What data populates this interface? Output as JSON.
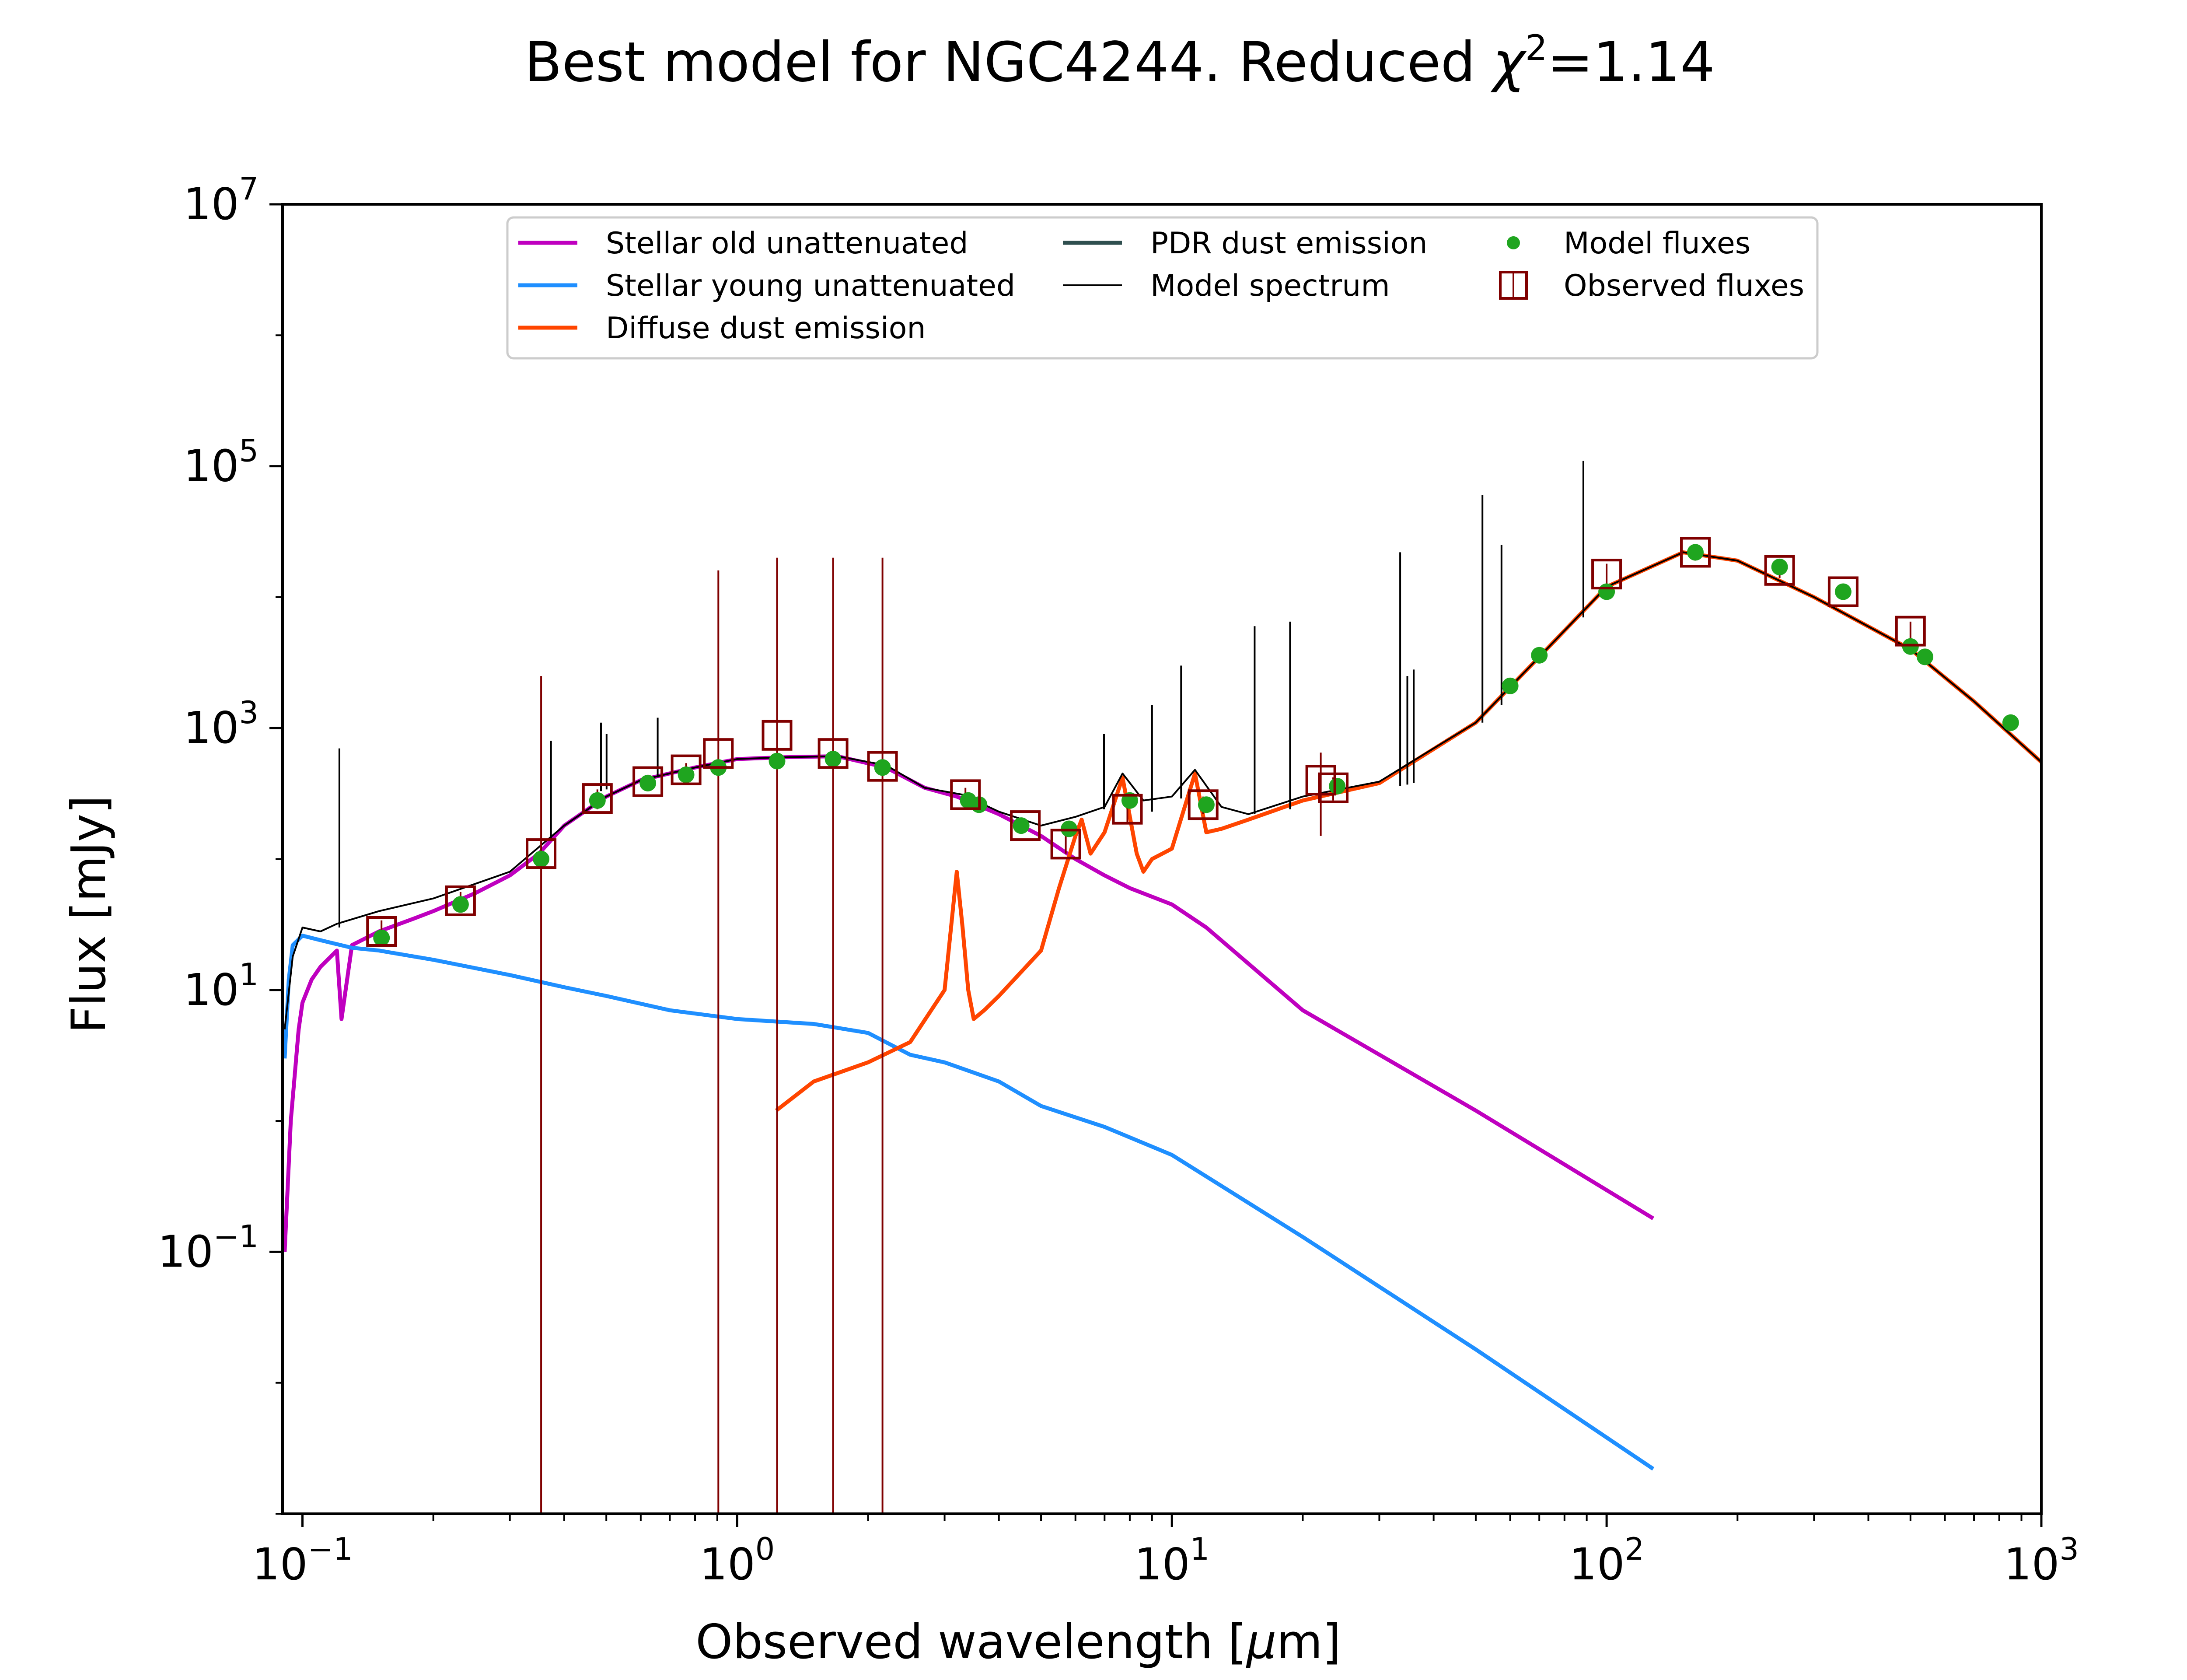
{
  "chart_data": {
    "type": "line",
    "title_main": "Best model for NGC4244. Reduced ",
    "title_chi": "χ",
    "title_exp": "2",
    "title_value": "=1.14",
    "xlabel_main": "Observed wavelength [",
    "xlabel_mu": "μ",
    "xlabel_unit": "m]",
    "ylabel": "Flux [mJy]",
    "xscale": "log",
    "yscale": "log",
    "xlim": [
      0.09,
      1000
    ],
    "ylim": [
      0.001,
      10000000
    ],
    "grid": false,
    "legend_placement": "top-center",
    "x_ticks": [
      {
        "base": "10",
        "exp": "−1",
        "value": 0.1
      },
      {
        "base": "10",
        "exp": "0",
        "value": 1
      },
      {
        "base": "10",
        "exp": "1",
        "value": 10
      },
      {
        "base": "10",
        "exp": "2",
        "value": 100
      },
      {
        "base": "10",
        "exp": "3",
        "value": 1000
      }
    ],
    "y_ticks": [
      {
        "base": "10",
        "exp": "−1",
        "value": 0.1
      },
      {
        "base": "10",
        "exp": "1",
        "value": 10
      },
      {
        "base": "10",
        "exp": "3",
        "value": 1000
      },
      {
        "base": "10",
        "exp": "5",
        "value": 100000
      },
      {
        "base": "10",
        "exp": "7",
        "value": 10000000
      }
    ],
    "legend": [
      {
        "label": "Stellar old unattenuated",
        "kind": "line",
        "color": "#bf00bf"
      },
      {
        "label": "Stellar young unattenuated",
        "kind": "line",
        "color": "#1f8fff"
      },
      {
        "label": "Diffuse dust emission",
        "kind": "line",
        "color": "#ff4500"
      },
      {
        "label": "PDR dust emission",
        "kind": "line",
        "color": "#2f4f4f"
      },
      {
        "label": "Model spectrum",
        "kind": "thinline",
        "color": "#000000"
      },
      {
        "label": "Model fluxes",
        "kind": "dot",
        "color": "#1fa51f"
      },
      {
        "label": "Observed fluxes",
        "kind": "square",
        "color": "#800000"
      }
    ],
    "series": [
      {
        "name": "Stellar old unattenuated",
        "color": "#bf00bf",
        "x": [
          0.091,
          0.094,
          0.098,
          0.1,
          0.105,
          0.11,
          0.12,
          0.123,
          0.13,
          0.15,
          0.18,
          0.2,
          0.25,
          0.3,
          0.35,
          0.4,
          0.5,
          0.6,
          0.8,
          1.0,
          1.3,
          1.7,
          2.2,
          2.7,
          3.2,
          4.0,
          5.0,
          6.0,
          7.0,
          8.0,
          10.0,
          12.0,
          20.0,
          50.0,
          128.0
        ],
        "y": [
          0.1,
          1.0,
          5.0,
          8.0,
          12.0,
          15.0,
          20.0,
          6.0,
          22.0,
          28.0,
          35.0,
          40.0,
          55.0,
          75.0,
          110.0,
          180.0,
          300.0,
          400.0,
          500.0,
          580.0,
          600.0,
          610.0,
          500.0,
          350.0,
          300.0,
          220.0,
          150.0,
          100.0,
          75.0,
          60.0,
          45.0,
          30.0,
          7.0,
          1.2,
          0.18
        ]
      },
      {
        "name": "Stellar young unattenuated",
        "color": "#1f8fff",
        "x": [
          0.091,
          0.093,
          0.095,
          0.1,
          0.11,
          0.13,
          0.15,
          0.2,
          0.3,
          0.4,
          0.5,
          0.7,
          1.0,
          1.5,
          2.0,
          2.5,
          3.0,
          4.0,
          5.0,
          7.0,
          10.0,
          20.0,
          50.0,
          128.0
        ],
        "y": [
          3.0,
          12.0,
          22.0,
          26.0,
          24.0,
          21.0,
          20.0,
          17.0,
          13.0,
          10.5,
          9.0,
          7.0,
          6.0,
          5.5,
          4.7,
          3.2,
          2.8,
          2.0,
          1.3,
          0.9,
          0.55,
          0.13,
          0.018,
          0.0022
        ]
      },
      {
        "name": "Diffuse dust emission",
        "color": "#ff4500",
        "x": [
          1.23,
          1.5,
          2.0,
          2.5,
          3.0,
          3.2,
          3.3,
          3.4,
          3.5,
          3.7,
          4.0,
          5.0,
          5.5,
          6.0,
          6.2,
          6.5,
          7.0,
          7.7,
          8.3,
          8.6,
          9.0,
          10.0,
          11.3,
          12.0,
          13.0,
          15.0,
          20.0,
          30.0,
          50.0,
          70.0,
          100.0,
          150.0,
          200.0,
          300.0,
          500.0,
          700.0,
          1000.0
        ],
        "y": [
          1.2,
          2.0,
          2.8,
          4.0,
          10.0,
          80.0,
          30.0,
          10.0,
          6.0,
          7.0,
          9.0,
          20.0,
          60.0,
          150.0,
          200.0,
          110.0,
          160.0,
          420.0,
          110.0,
          80.0,
          100.0,
          120.0,
          450.0,
          160.0,
          170.0,
          200.0,
          280.0,
          380.0,
          1100.0,
          3500.0,
          12000.0,
          22000.0,
          19000.0,
          10000.0,
          4000.0,
          1600.0,
          550.0
        ]
      },
      {
        "name": "Model spectrum",
        "color": "#000000",
        "x": [
          0.091,
          0.095,
          0.1,
          0.11,
          0.12,
          0.15,
          0.2,
          0.3,
          0.4,
          0.5,
          0.6,
          0.8,
          1.0,
          1.3,
          1.7,
          2.2,
          2.7,
          3.3,
          4.0,
          5.0,
          6.0,
          7.0,
          7.7,
          8.6,
          10.0,
          11.3,
          13.0,
          15.0,
          20.0,
          30.0,
          50.0,
          70.0,
          100.0,
          150.0,
          200.0,
          300.0,
          500.0,
          700.0,
          1000.0
        ],
        "y": [
          5.0,
          18.0,
          30.0,
          28.0,
          32.0,
          40.0,
          50.0,
          80.0,
          180.0,
          300.0,
          400.0,
          500.0,
          580.0,
          600.0,
          610.0,
          520.0,
          350.0,
          310.0,
          230.0,
          180.0,
          210.0,
          250.0,
          450.0,
          280.0,
          300.0,
          480.0,
          250.0,
          220.0,
          300.0,
          390.0,
          1100.0,
          3500.0,
          12000.0,
          22000.0,
          19000.0,
          10000.0,
          4000.0,
          1600.0,
          550.0
        ]
      }
    ],
    "emission_lines": [
      {
        "x": 0.1216,
        "y_top": 700,
        "y_base": 30
      },
      {
        "x": 0.373,
        "y_top": 800,
        "y_base": 140
      },
      {
        "x": 0.4861,
        "y_top": 1100,
        "y_base": 330
      },
      {
        "x": 0.5007,
        "y_top": 900,
        "y_base": 340
      },
      {
        "x": 0.6563,
        "y_top": 1200,
        "y_base": 420
      },
      {
        "x": 6.98,
        "y_top": 900,
        "y_base": 240
      },
      {
        "x": 9.0,
        "y_top": 1500,
        "y_base": 230
      },
      {
        "x": 10.5,
        "y_top": 3000,
        "y_base": 290
      },
      {
        "x": 15.5,
        "y_top": 6000,
        "y_base": 220
      },
      {
        "x": 18.7,
        "y_top": 6500,
        "y_base": 240
      },
      {
        "x": 33.5,
        "y_top": 22000,
        "y_base": 360
      },
      {
        "x": 34.8,
        "y_top": 2500,
        "y_base": 370
      },
      {
        "x": 36.0,
        "y_top": 2800,
        "y_base": 380
      },
      {
        "x": 51.8,
        "y_top": 60000,
        "y_base": 1100
      },
      {
        "x": 57.3,
        "y_top": 25000,
        "y_base": 1500
      },
      {
        "x": 88.4,
        "y_top": 110000,
        "y_base": 7000
      }
    ],
    "model_fluxes": {
      "x": [
        0.152,
        0.231,
        0.354,
        0.477,
        0.623,
        0.763,
        0.905,
        1.235,
        1.662,
        2.159,
        3.4,
        3.6,
        4.5,
        5.8,
        8.0,
        12.0,
        24.0,
        60.0,
        70.0,
        100.0,
        160.0,
        250.0,
        350.0,
        500.0,
        540.0,
        850.0
      ],
      "y": [
        25.0,
        45.0,
        100.0,
        280.0,
        380.0,
        440.0,
        500.0,
        560.0,
        580.0,
        500.0,
        280.0,
        260.0,
        180.0,
        170.0,
        280.0,
        260.0,
        360.0,
        2100.0,
        3600.0,
        11000.0,
        22000.0,
        17000.0,
        11000.0,
        4200.0,
        3500.0,
        1100.0
      ]
    },
    "observed_fluxes": {
      "x": [
        0.152,
        0.231,
        0.354,
        0.477,
        0.623,
        0.763,
        0.905,
        1.235,
        1.662,
        2.159,
        3.35,
        4.6,
        5.7,
        7.9,
        11.8,
        22.0,
        23.5,
        100.0,
        160.0,
        250.0,
        350.0,
        500.0
      ],
      "y": [
        28.0,
        48.0,
        110.0,
        290.0,
        390.0,
        480.0,
        640.0,
        880.0,
        640.0,
        510.0,
        310.0,
        180.0,
        130.0,
        240.0,
        260.0,
        400.0,
        350.0,
        15000.0,
        22000.0,
        16000.0,
        11000.0,
        5500.0
      ],
      "y_low": [
        22.0,
        40.0,
        0.001,
        240.0,
        340.0,
        420.0,
        0.001,
        0.001,
        0.001,
        0.001,
        270.0,
        160.0,
        110.0,
        190.0,
        220.0,
        150.0,
        280.0,
        12000.0,
        19000.0,
        14000.0,
        10000.0,
        4500.0
      ],
      "y_high": [
        34.0,
        56.0,
        2500.0,
        340.0,
        440.0,
        540.0,
        16000.0,
        20000.0,
        20000.0,
        20000.0,
        350.0,
        200.0,
        150.0,
        290.0,
        300.0,
        650.0,
        420.0,
        18000.0,
        25000.0,
        18000.0,
        12000.0,
        6500.0
      ]
    }
  }
}
